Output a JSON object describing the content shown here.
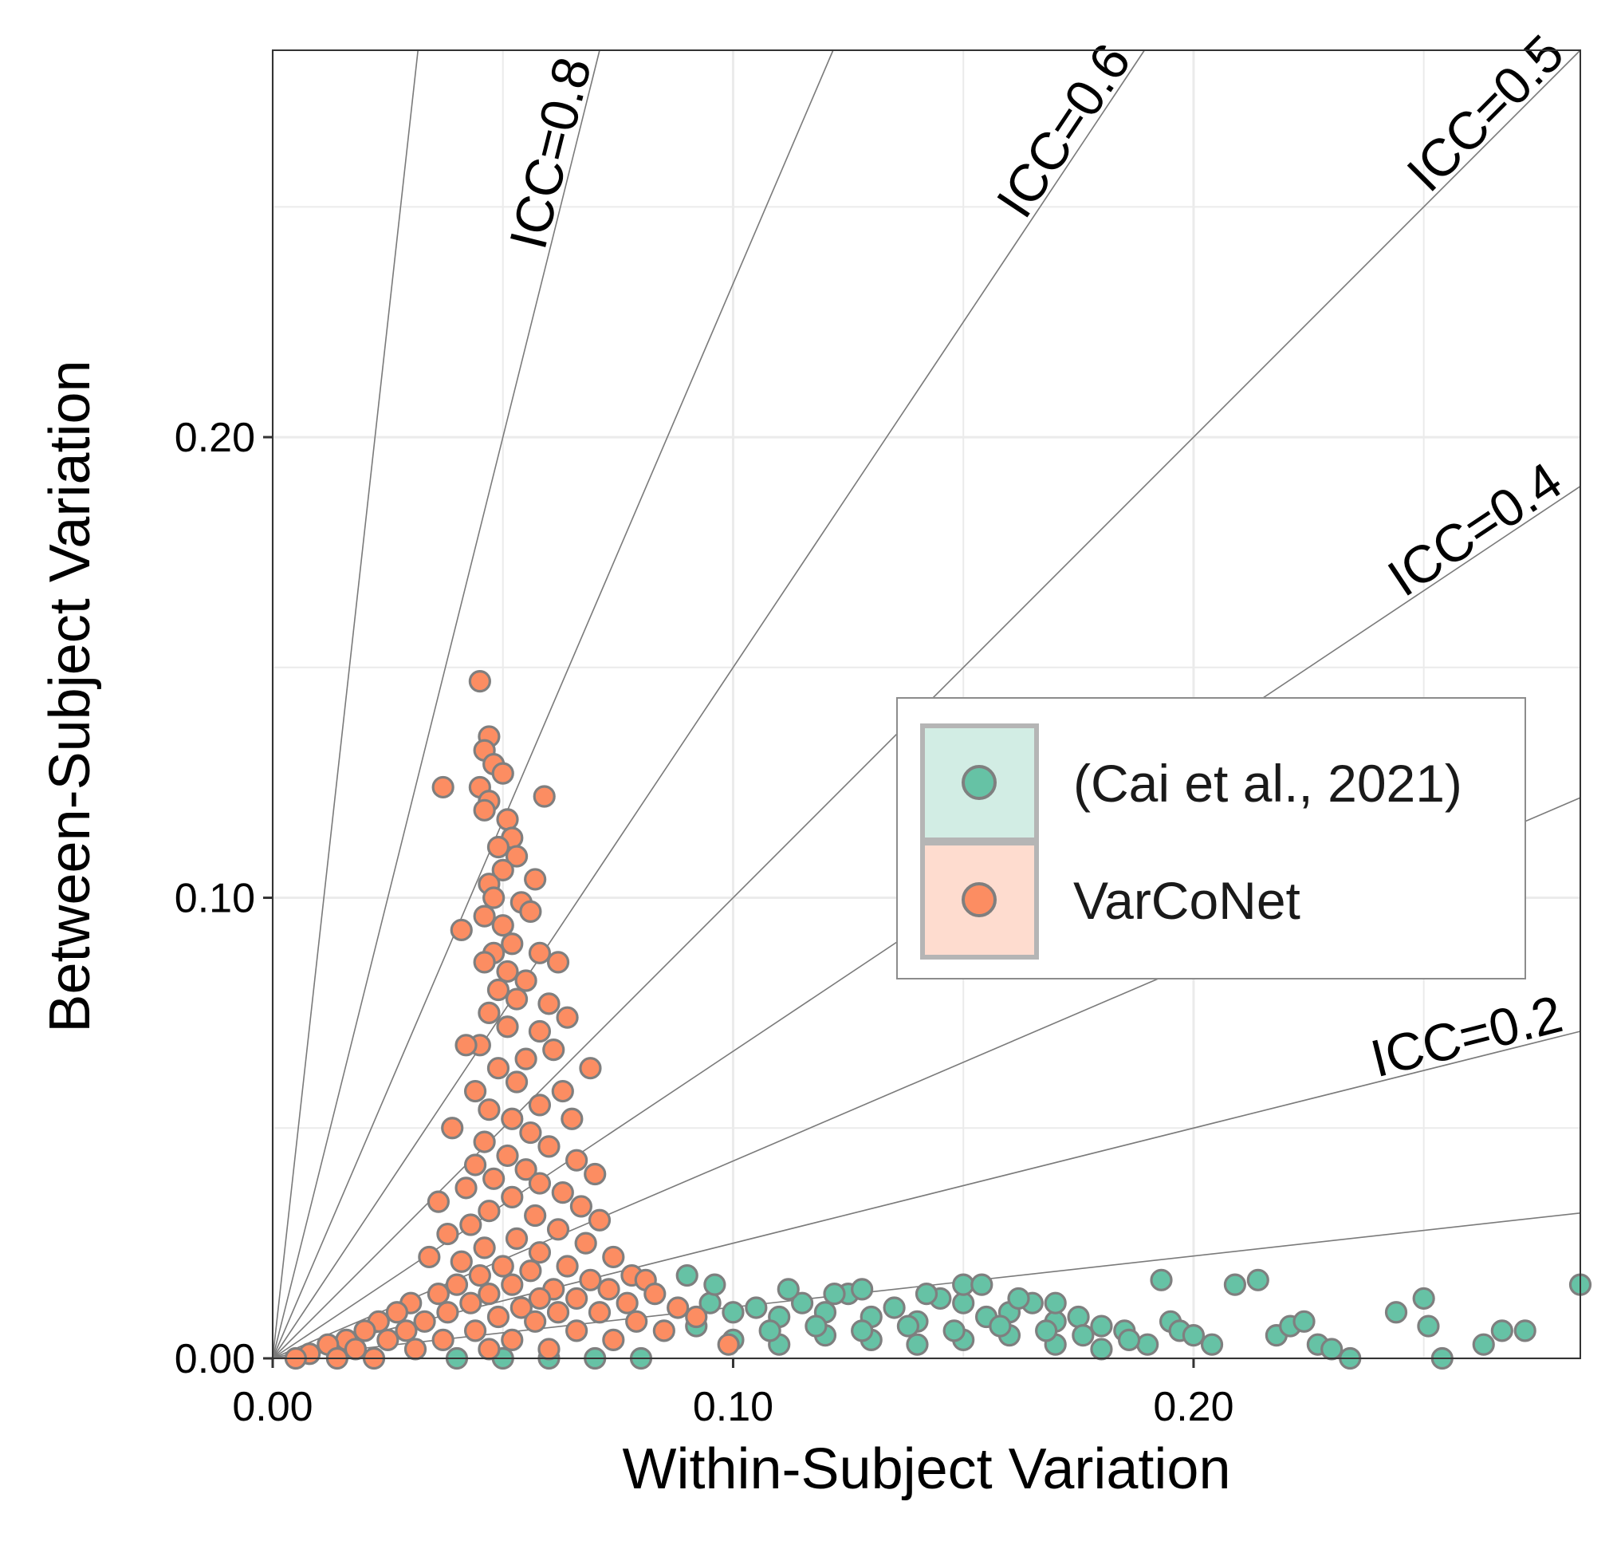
{
  "chart_data": {
    "type": "scatter",
    "title": "",
    "xlabel": "Within-Subject Variation",
    "ylabel": "Between-Subject Variation",
    "xlim": [
      0,
      0.284
    ],
    "ylim": [
      0,
      0.284
    ],
    "x_ticks": [
      "0.00",
      "0.10",
      "0.20"
    ],
    "x_tick_values": [
      0.0,
      0.1,
      0.2
    ],
    "y_ticks": [
      "0.00",
      "0.10",
      "0.20"
    ],
    "y_tick_values": [
      0.0,
      0.1,
      0.2
    ],
    "grid": true,
    "legend_position": "right",
    "reference_lines": {
      "description": "lines of constant ICC = between / (between + within)",
      "icc_values": [
        0.1,
        0.2,
        0.3,
        0.4,
        0.5,
        0.6,
        0.7,
        0.8,
        0.9
      ],
      "labels": [
        {
          "icc": 0.8,
          "text": "ICC=0.8"
        },
        {
          "icc": 0.6,
          "text": "ICC=0.6"
        },
        {
          "icc": 0.5,
          "text": "ICC=0.5"
        },
        {
          "icc": 0.4,
          "text": "ICC=0.4"
        },
        {
          "icc": 0.2,
          "text": "ICC=0.2"
        }
      ]
    },
    "series": [
      {
        "name": "(Cai et al., 2021)",
        "color": "#66c2a5",
        "edge_color": "#7f7f7f",
        "points": [
          [
            0.09,
            0.018
          ],
          [
            0.095,
            0.012
          ],
          [
            0.1,
            0.01
          ],
          [
            0.105,
            0.011
          ],
          [
            0.11,
            0.009
          ],
          [
            0.115,
            0.012
          ],
          [
            0.12,
            0.01
          ],
          [
            0.125,
            0.014
          ],
          [
            0.13,
            0.009
          ],
          [
            0.135,
            0.011
          ],
          [
            0.14,
            0.008
          ],
          [
            0.145,
            0.013
          ],
          [
            0.15,
            0.012
          ],
          [
            0.155,
            0.009
          ],
          [
            0.16,
            0.01
          ],
          [
            0.165,
            0.012
          ],
          [
            0.17,
            0.008
          ],
          [
            0.175,
            0.009
          ],
          [
            0.18,
            0.007
          ],
          [
            0.185,
            0.006
          ],
          [
            0.1,
            0.004
          ],
          [
            0.11,
            0.003
          ],
          [
            0.12,
            0.005
          ],
          [
            0.13,
            0.004
          ],
          [
            0.14,
            0.003
          ],
          [
            0.15,
            0.004
          ],
          [
            0.16,
            0.005
          ],
          [
            0.17,
            0.003
          ],
          [
            0.18,
            0.002
          ],
          [
            0.19,
            0.003
          ],
          [
            0.092,
            0.007
          ],
          [
            0.108,
            0.006
          ],
          [
            0.118,
            0.007
          ],
          [
            0.128,
            0.006
          ],
          [
            0.138,
            0.007
          ],
          [
            0.148,
            0.006
          ],
          [
            0.158,
            0.007
          ],
          [
            0.168,
            0.006
          ],
          [
            0.176,
            0.005
          ],
          [
            0.186,
            0.004
          ],
          [
            0.193,
            0.017
          ],
          [
            0.195,
            0.008
          ],
          [
            0.197,
            0.006
          ],
          [
            0.2,
            0.005
          ],
          [
            0.204,
            0.003
          ],
          [
            0.209,
            0.016
          ],
          [
            0.214,
            0.017
          ],
          [
            0.218,
            0.005
          ],
          [
            0.221,
            0.007
          ],
          [
            0.224,
            0.008
          ],
          [
            0.227,
            0.003
          ],
          [
            0.23,
            0.002
          ],
          [
            0.234,
            0.0
          ],
          [
            0.244,
            0.01
          ],
          [
            0.25,
            0.013
          ],
          [
            0.251,
            0.007
          ],
          [
            0.254,
            0.0
          ],
          [
            0.263,
            0.003
          ],
          [
            0.267,
            0.006
          ],
          [
            0.272,
            0.006
          ],
          [
            0.284,
            0.016
          ],
          [
            0.15,
            0.016
          ],
          [
            0.154,
            0.016
          ],
          [
            0.128,
            0.015
          ],
          [
            0.142,
            0.014
          ],
          [
            0.112,
            0.015
          ],
          [
            0.122,
            0.014
          ],
          [
            0.162,
            0.013
          ],
          [
            0.17,
            0.012
          ],
          [
            0.096,
            0.016
          ],
          [
            0.06,
            0.0
          ],
          [
            0.07,
            0.0
          ],
          [
            0.08,
            0.0
          ],
          [
            0.05,
            0.0
          ],
          [
            0.04,
            0.0
          ]
        ]
      },
      {
        "name": "VarCoNet",
        "color": "#fc8d62",
        "edge_color": "#7f7f7f",
        "points": [
          [
            0.045,
            0.147
          ],
          [
            0.047,
            0.135
          ],
          [
            0.046,
            0.132
          ],
          [
            0.048,
            0.129
          ],
          [
            0.045,
            0.124
          ],
          [
            0.05,
            0.127
          ],
          [
            0.037,
            0.124
          ],
          [
            0.059,
            0.122
          ],
          [
            0.047,
            0.121
          ],
          [
            0.046,
            0.119
          ],
          [
            0.051,
            0.117
          ],
          [
            0.052,
            0.113
          ],
          [
            0.049,
            0.111
          ],
          [
            0.053,
            0.109
          ],
          [
            0.05,
            0.106
          ],
          [
            0.047,
            0.103
          ],
          [
            0.057,
            0.104
          ],
          [
            0.048,
            0.1
          ],
          [
            0.054,
            0.099
          ],
          [
            0.056,
            0.097
          ],
          [
            0.046,
            0.096
          ],
          [
            0.041,
            0.093
          ],
          [
            0.05,
            0.094
          ],
          [
            0.052,
            0.09
          ],
          [
            0.048,
            0.088
          ],
          [
            0.058,
            0.088
          ],
          [
            0.046,
            0.086
          ],
          [
            0.062,
            0.086
          ],
          [
            0.051,
            0.084
          ],
          [
            0.055,
            0.082
          ],
          [
            0.049,
            0.08
          ],
          [
            0.053,
            0.078
          ],
          [
            0.06,
            0.077
          ],
          [
            0.064,
            0.074
          ],
          [
            0.047,
            0.075
          ],
          [
            0.051,
            0.072
          ],
          [
            0.058,
            0.071
          ],
          [
            0.045,
            0.068
          ],
          [
            0.042,
            0.068
          ],
          [
            0.061,
            0.067
          ],
          [
            0.055,
            0.065
          ],
          [
            0.069,
            0.063
          ],
          [
            0.049,
            0.063
          ],
          [
            0.053,
            0.06
          ],
          [
            0.044,
            0.058
          ],
          [
            0.063,
            0.058
          ],
          [
            0.058,
            0.055
          ],
          [
            0.047,
            0.054
          ],
          [
            0.052,
            0.052
          ],
          [
            0.065,
            0.052
          ],
          [
            0.039,
            0.05
          ],
          [
            0.056,
            0.049
          ],
          [
            0.046,
            0.047
          ],
          [
            0.06,
            0.046
          ],
          [
            0.051,
            0.044
          ],
          [
            0.066,
            0.043
          ],
          [
            0.044,
            0.042
          ],
          [
            0.055,
            0.041
          ],
          [
            0.07,
            0.04
          ],
          [
            0.048,
            0.039
          ],
          [
            0.058,
            0.038
          ],
          [
            0.042,
            0.037
          ],
          [
            0.063,
            0.036
          ],
          [
            0.052,
            0.035
          ],
          [
            0.036,
            0.034
          ],
          [
            0.067,
            0.033
          ],
          [
            0.047,
            0.032
          ],
          [
            0.057,
            0.031
          ],
          [
            0.071,
            0.03
          ],
          [
            0.043,
            0.029
          ],
          [
            0.062,
            0.028
          ],
          [
            0.038,
            0.027
          ],
          [
            0.053,
            0.026
          ],
          [
            0.068,
            0.025
          ],
          [
            0.046,
            0.024
          ],
          [
            0.058,
            0.023
          ],
          [
            0.074,
            0.022
          ],
          [
            0.041,
            0.021
          ],
          [
            0.05,
            0.02
          ],
          [
            0.064,
            0.02
          ],
          [
            0.034,
            0.022
          ],
          [
            0.056,
            0.019
          ],
          [
            0.078,
            0.018
          ],
          [
            0.045,
            0.018
          ],
          [
            0.069,
            0.017
          ],
          [
            0.04,
            0.016
          ],
          [
            0.052,
            0.016
          ],
          [
            0.081,
            0.017
          ],
          [
            0.061,
            0.015
          ],
          [
            0.073,
            0.015
          ],
          [
            0.036,
            0.014
          ],
          [
            0.047,
            0.014
          ],
          [
            0.083,
            0.014
          ],
          [
            0.058,
            0.013
          ],
          [
            0.066,
            0.013
          ],
          [
            0.03,
            0.012
          ],
          [
            0.043,
            0.012
          ],
          [
            0.077,
            0.012
          ],
          [
            0.054,
            0.011
          ],
          [
            0.088,
            0.011
          ],
          [
            0.027,
            0.01
          ],
          [
            0.038,
            0.01
          ],
          [
            0.062,
            0.01
          ],
          [
            0.071,
            0.01
          ],
          [
            0.049,
            0.009
          ],
          [
            0.023,
            0.008
          ],
          [
            0.033,
            0.008
          ],
          [
            0.057,
            0.008
          ],
          [
            0.079,
            0.008
          ],
          [
            0.092,
            0.009
          ],
          [
            0.02,
            0.006
          ],
          [
            0.029,
            0.006
          ],
          [
            0.044,
            0.006
          ],
          [
            0.066,
            0.006
          ],
          [
            0.085,
            0.006
          ],
          [
            0.016,
            0.004
          ],
          [
            0.025,
            0.004
          ],
          [
            0.037,
            0.004
          ],
          [
            0.052,
            0.004
          ],
          [
            0.074,
            0.004
          ],
          [
            0.012,
            0.003
          ],
          [
            0.018,
            0.002
          ],
          [
            0.031,
            0.002
          ],
          [
            0.047,
            0.002
          ],
          [
            0.06,
            0.002
          ],
          [
            0.008,
            0.001
          ],
          [
            0.005,
            0.0
          ],
          [
            0.014,
            0.0
          ],
          [
            0.022,
            0.0
          ],
          [
            0.099,
            0.003
          ]
        ]
      }
    ]
  },
  "legend": {
    "items": [
      {
        "label": "(Cai et al., 2021)",
        "color": "#66c2a5",
        "key_fill": "#d2ede4"
      },
      {
        "label": "VarCoNet",
        "color": "#fc8d62",
        "key_fill": "#fedccf"
      }
    ]
  }
}
